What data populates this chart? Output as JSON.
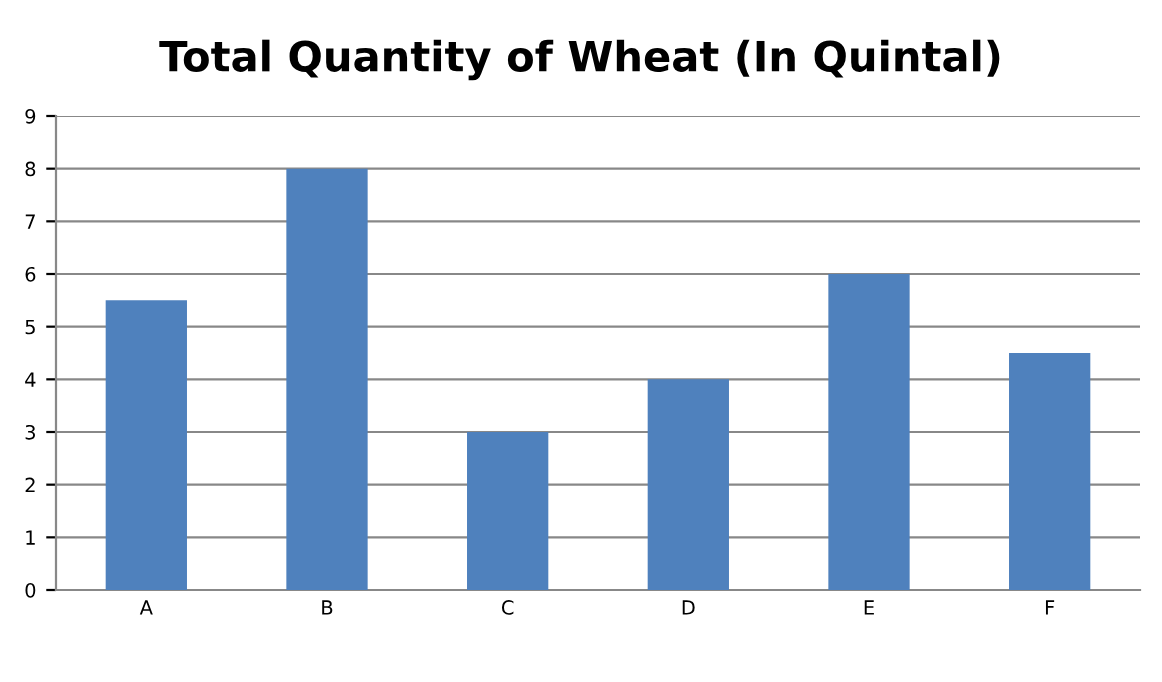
{
  "chart_data": {
    "type": "bar",
    "title": "Total Quantity of Wheat (In Quintal)",
    "categories": [
      "A",
      "B",
      "C",
      "D",
      "E",
      "F"
    ],
    "values": [
      5.5,
      8,
      3,
      4,
      6,
      4.5
    ],
    "color": "#4f81bd",
    "ylim": [
      0,
      9
    ],
    "yticks": [
      0,
      1,
      2,
      3,
      4,
      5,
      6,
      7,
      8,
      9
    ],
    "grid": "y"
  }
}
